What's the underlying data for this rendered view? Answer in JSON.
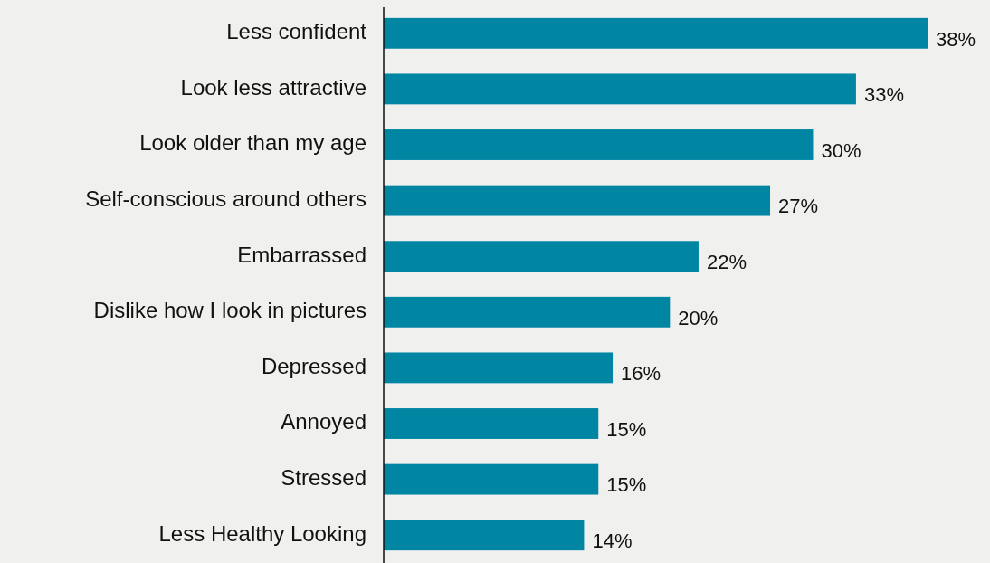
{
  "chart_data": {
    "type": "bar",
    "orientation": "horizontal",
    "categories": [
      "Less confident",
      "Look less attractive",
      "Look older than my age",
      "Self-conscious around others",
      "Embarrassed",
      "Dislike how I look in pictures",
      "Depressed",
      "Annoyed",
      "Stressed",
      "Less Healthy Looking"
    ],
    "values": [
      38,
      33,
      30,
      27,
      22,
      20,
      16,
      15,
      15,
      14
    ],
    "value_labels": [
      "38%",
      "33%",
      "30%",
      "27%",
      "22%",
      "20%",
      "16%",
      "15%",
      "15%",
      "14%"
    ],
    "color": "#0086a3"
  }
}
